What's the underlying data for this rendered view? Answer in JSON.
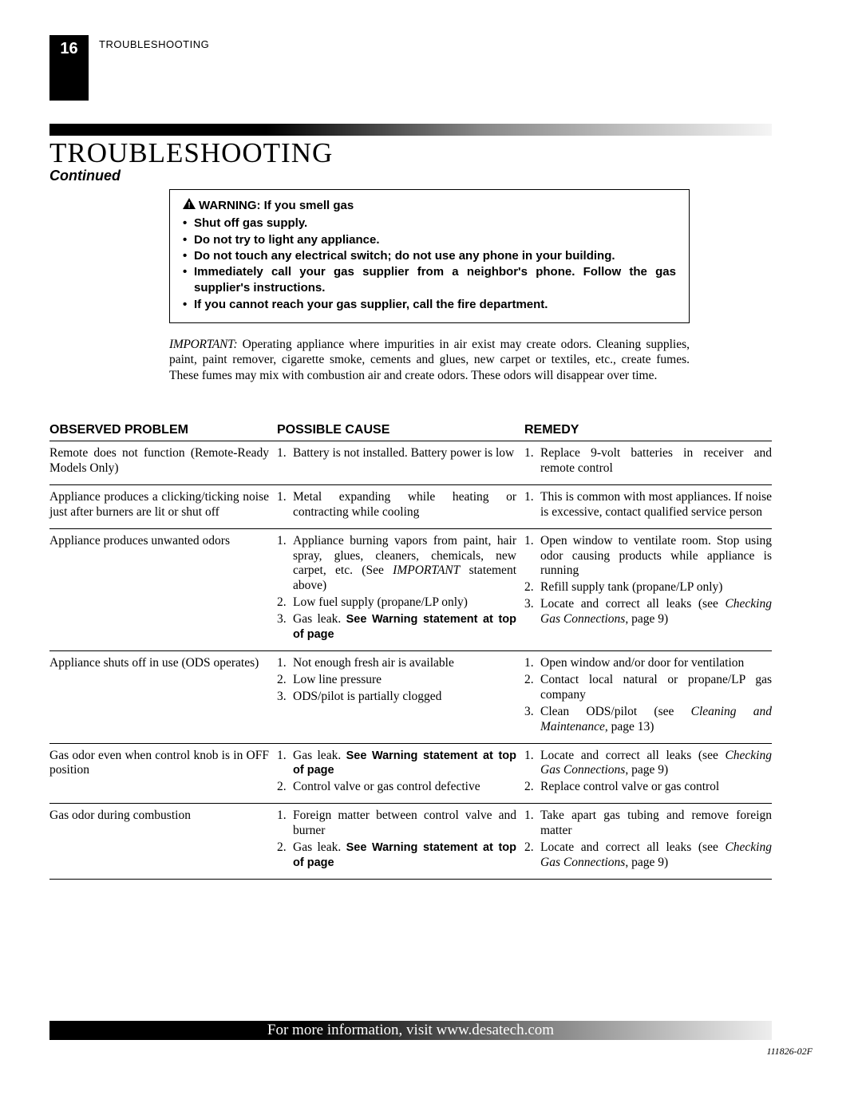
{
  "page_number": "16",
  "running_head": "TROUBLESHOOTING",
  "title": "TROUBLESHOOTING",
  "subtitle": "Continued",
  "warning": {
    "heading": "WARNING: If you smell gas",
    "bullets": [
      "Shut off gas supply.",
      "Do not try to light any appliance.",
      "Do not touch any electrical switch; do not use any phone in your building.",
      "Immediately call your gas supplier from a neighbor's phone. Follow the gas supplier's instructions.",
      "If you cannot reach your gas supplier, call the fire department."
    ]
  },
  "important": {
    "lead": "IMPORTANT:",
    "body": " Operating appliance where impurities in air exist may create odors. Cleaning supplies, paint, paint remover, cigarette smoke, cements and glues, new carpet or textiles, etc., create fumes. These fumes may mix with combustion air and create odors. These odors will disappear over time."
  },
  "columns": {
    "c1": "OBSERVED PROBLEM",
    "c2": "POSSIBLE CAUSE",
    "c3": "REMEDY"
  },
  "rows": [
    {
      "problem": "Remote does not function (Remote-Ready Models Only)",
      "causes": [
        {
          "t": "Battery is not installed. Battery power is low"
        }
      ],
      "remedies": [
        {
          "t": "Replace 9-volt batteries in receiver and remote control"
        }
      ]
    },
    {
      "problem": "Appliance produces a clicking/ticking noise just after burners are lit or shut off",
      "causes": [
        {
          "t": "Metal expanding while heating or contracting while cooling"
        }
      ],
      "remedies": [
        {
          "t": "This is common with most appliances. If noise is excessive, contact qualified service person"
        }
      ]
    },
    {
      "problem": "Appliance produces unwanted odors",
      "causes": [
        {
          "pre": "Appliance burning vapors from paint, hair spray, glues, cleaners, chemicals, new carpet, etc. (See ",
          "ital": "IMPORTANT",
          "post": " statement above)"
        },
        {
          "t": "Low fuel supply (propane/LP only)"
        },
        {
          "pre": "Gas leak. ",
          "bold": "See Warning statement at top of page"
        }
      ],
      "remedies": [
        {
          "t": "Open window to ventilate room. Stop using odor causing products while appliance is running"
        },
        {
          "t": "Refill supply tank (propane/LP only)"
        },
        {
          "pre": "Locate and correct all leaks (see ",
          "ital": "Checking Gas Connections",
          "post": ", page 9)"
        }
      ]
    },
    {
      "problem": "Appliance shuts off in use (ODS operates)",
      "causes": [
        {
          "t": "Not enough fresh air is available"
        },
        {
          "t": "Low line pressure"
        },
        {
          "t": "ODS/pilot is partially clogged"
        }
      ],
      "remedies": [
        {
          "t": "Open window and/or door for ventilation"
        },
        {
          "t": "Contact local natural or propane/LP gas company"
        },
        {
          "pre": "Clean ODS/pilot (see ",
          "ital": "Cleaning and Maintenance",
          "post": ", page 13)"
        }
      ]
    },
    {
      "problem": "Gas odor even when control knob is in OFF position",
      "causes": [
        {
          "pre": "Gas leak. ",
          "bold": "See Warning statement at top of page"
        },
        {
          "t": "Control valve or gas control defective"
        }
      ],
      "remedies": [
        {
          "pre": "Locate and correct all leaks (see ",
          "ital": "Checking Gas Connections",
          "post": ", page 9)"
        },
        {
          "t": "Replace control valve or gas control"
        }
      ]
    },
    {
      "problem": "Gas odor during combustion",
      "causes": [
        {
          "t": "Foreign matter between control valve and burner"
        },
        {
          "pre": "Gas leak. ",
          "bold": "See Warning statement at top of page"
        }
      ],
      "remedies": [
        {
          "t": "Take apart gas tubing and remove foreign matter"
        },
        {
          "pre": "Locate and correct all leaks (see ",
          "ital": "Checking Gas Connections",
          "post": ", page 9)"
        }
      ]
    }
  ],
  "footer": "For more information, visit www.desatech.com",
  "doc_id": "111826-02F"
}
